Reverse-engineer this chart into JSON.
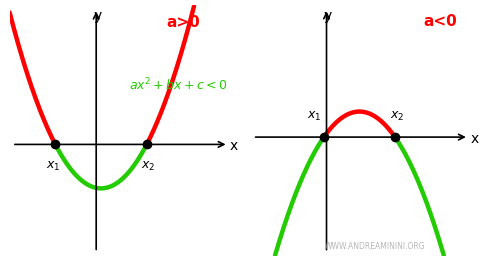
{
  "background_color": "#ffffff",
  "red_color": "#ff0000",
  "green_color": "#22cc00",
  "black_color": "#000000",
  "gray_color": "#aaaaaa",
  "watermark": "WWW.ANDREAMININI.ORG",
  "linewidth": 3.2,
  "label_a0": "a>0",
  "label_a1": "a<0",
  "label_eq": "ax²+bx+c<0"
}
